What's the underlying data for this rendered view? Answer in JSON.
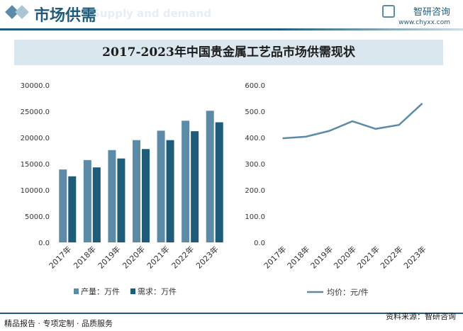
{
  "header": {
    "title": "市场供需",
    "ghost_text": "Supply and demand",
    "brand_name": "智研咨询",
    "brand_url": "www.chyxx.com"
  },
  "chart_title": "2017-2023年中国贵金属工艺品市场供需现状",
  "footer": {
    "left": "精品报告 · 专项定制 · 品质服务",
    "source": "资料来源：智研咨询"
  },
  "watermark": "智研咨询",
  "colors": {
    "production": "#5b8ba6",
    "demand": "#1f5c7a",
    "price_line": "#5b8ba6"
  },
  "chart_data": [
    {
      "type": "bar",
      "categories": [
        "2017年",
        "2018年",
        "2019年",
        "2020年",
        "2021年",
        "2022年",
        "2023年"
      ],
      "series": [
        {
          "name": "产量：万件",
          "values": [
            13900,
            15700,
            17600,
            19500,
            21300,
            23200,
            25100
          ]
        },
        {
          "name": "需求：万件",
          "values": [
            12600,
            14300,
            16000,
            17800,
            19500,
            21200,
            22900
          ]
        }
      ],
      "yticks": [
        "0.0",
        "5000.0",
        "10000.0",
        "15000.0",
        "20000.0",
        "25000.0",
        "30000.0"
      ],
      "ylim": [
        0,
        30000
      ],
      "legend": "bottom"
    },
    {
      "type": "line",
      "categories": [
        "2017年",
        "2018年",
        "2019年",
        "2020年",
        "2021年",
        "2022年",
        "2023年"
      ],
      "series": [
        {
          "name": "均价：元/件",
          "values": [
            397,
            403,
            425,
            462,
            433,
            448,
            530
          ]
        }
      ],
      "yticks": [
        "0.0",
        "100.0",
        "200.0",
        "300.0",
        "400.0",
        "500.0",
        "600.0"
      ],
      "ylim": [
        0,
        600
      ],
      "legend": "bottom"
    }
  ]
}
